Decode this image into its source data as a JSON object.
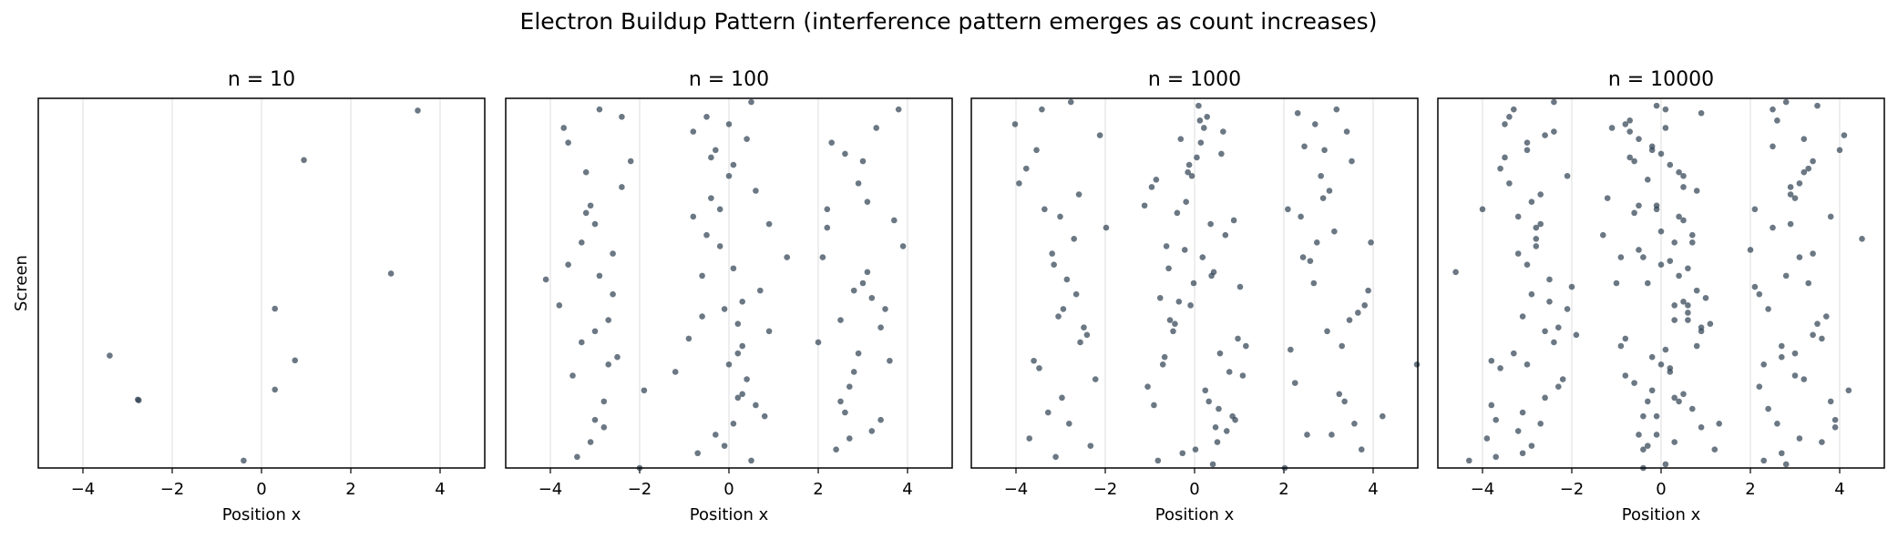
{
  "title": "Electron Buildup Pattern (interference pattern emerges as count increases)",
  "chart_data": [
    {
      "type": "scatter",
      "title": "n = 10",
      "xlabel": "Position x",
      "ylabel": "Screen",
      "color": "#2c3e50",
      "grid": true,
      "xlim": [
        -5,
        5
      ],
      "ylim": [
        0,
        1
      ],
      "xticks": [
        {
          "value": -4,
          "label": "−4"
        },
        {
          "value": -2,
          "label": "−2"
        },
        0,
        2,
        4
      ],
      "x": [
        3.5,
        0.95,
        2.9,
        0.3,
        -3.4,
        0.75,
        -2.75,
        -2.77,
        0.3,
        -0.4
      ],
      "y": [
        0.967,
        0.833,
        0.526,
        0.431,
        0.304,
        0.291,
        0.183,
        0.185,
        0.212,
        0.02
      ]
    },
    {
      "type": "scatter",
      "title": "n = 100",
      "xlabel": "Position x",
      "color": "#2c3e50",
      "grid": true,
      "xlim": [
        -5,
        5
      ],
      "ylim": [
        0,
        1
      ],
      "xticks": [
        {
          "value": -4,
          "label": "−4"
        },
        {
          "value": -2,
          "label": "−2"
        },
        0,
        2,
        4
      ],
      "x": [
        -3.6,
        -3.3,
        -2.9,
        -3.1,
        -2.6,
        -2.5,
        -3.0,
        -3.7,
        -3.2,
        -2.8,
        -3.4,
        -2.4,
        -3.0,
        -2.7,
        -4.1,
        -3.5,
        -2.9,
        -3.3,
        -2.2,
        -3.1,
        -2.6,
        -3.8,
        -2.0,
        -1.9,
        -3.2,
        -2.8,
        -3.0,
        -2.4,
        -3.6,
        -2.7,
        -0.5,
        0.1,
        -0.2,
        0.0,
        0.3,
        -0.8,
        0.6,
        -0.4,
        0.2,
        -0.1,
        0.9,
        -0.6,
        0.4,
        -0.3,
        0.1,
        0.7,
        -0.9,
        0.5,
        -0.2,
        0.3,
        1.3,
        -0.7,
        0.0,
        0.2,
        -0.5,
        0.8,
        -0.1,
        0.4,
        -1.2,
        0.6,
        -0.3,
        0.1,
        0.9,
        -0.4,
        0.2,
        -0.8,
        0.5,
        -0.6,
        0.0,
        0.3,
        2.2,
        3.1,
        2.8,
        3.6,
        2.5,
        3.0,
        3.9,
        2.3,
        3.4,
        2.7,
        3.2,
        2.1,
        2.9,
        3.5,
        2.6,
        3.3,
        2.0,
        3.7,
        2.4,
        3.0,
        2.8,
        3.1,
        2.5,
        3.8,
        2.2,
        3.4,
        2.9,
        2.6,
        3.2,
        2.7
      ],
      "y": [
        0.88,
        0.61,
        0.52,
        0.71,
        0.47,
        0.3,
        0.13,
        0.92,
        0.8,
        0.18,
        0.03,
        0.76,
        0.66,
        0.4,
        0.51,
        0.25,
        0.97,
        0.34,
        0.83,
        0.07,
        0.58,
        0.44,
        0.0,
        0.21,
        0.69,
        0.11,
        0.37,
        0.95,
        0.55,
        0.28,
        0.95,
        0.82,
        0.6,
        0.28,
        0.45,
        0.91,
        0.17,
        0.73,
        0.39,
        0.06,
        0.66,
        0.52,
        0.24,
        0.86,
        0.12,
        0.48,
        0.35,
        0.99,
        0.7,
        0.2,
        0.57,
        0.04,
        0.79,
        0.31,
        0.63,
        0.14,
        0.43,
        0.89,
        0.26,
        0.75,
        0.09,
        0.54,
        0.37,
        0.84,
        0.19,
        0.68,
        0.02,
        0.41,
        0.93,
        0.33,
        0.65,
        0.72,
        0.48,
        0.29,
        0.18,
        0.5,
        0.6,
        0.88,
        0.38,
        0.22,
        0.1,
        0.57,
        0.77,
        0.43,
        0.15,
        0.92,
        0.34,
        0.67,
        0.05,
        0.83,
        0.26,
        0.53,
        0.4,
        0.97,
        0.7,
        0.13,
        0.31,
        0.85,
        0.46,
        0.08
      ]
    },
    {
      "type": "scatter",
      "title": "n = 1000",
      "xlabel": "Position x",
      "color": "#2c3e50",
      "grid": true,
      "xlim": [
        -5,
        5
      ],
      "ylim": [
        0,
        1
      ],
      "xticks": [
        {
          "value": -4,
          "label": "−4"
        },
        {
          "value": -2,
          "label": "−2"
        },
        0,
        2,
        4
      ],
      "x": [
        -3.42,
        -2.81,
        -3.15,
        -2.56,
        -3.77,
        -2.33,
        -3.01,
        -2.94,
        -3.6,
        -2.12,
        -3.28,
        -2.7,
        -3.93,
        -2.48,
        -3.11,
        -2.86,
        -3.54,
        -2.22,
        -3.36,
        -2.65,
        -4.02,
        -2.97,
        -3.19,
        -2.41,
        -3.7,
        -2.59,
        -3.05,
        -2.77,
        -3.48,
        -1.98,
        -0.82,
        0.14,
        -0.35,
        0.57,
        -0.06,
        0.91,
        -0.63,
        0.28,
        -1.05,
        0.43,
        -0.19,
        0.72,
        -0.48,
        0.05,
        1.02,
        -0.91,
        0.36,
        -0.27,
        0.64,
        -0.71,
        0.18,
        -0.12,
        0.85,
        -0.55,
        0.09,
        1.15,
        -0.39,
        0.51,
        -0.02,
        -0.96,
        0.24,
        0.69,
        -0.31,
        0.41,
        -0.77,
        0.97,
        -0.15,
        0.32,
        -0.58,
        0.12,
        0.78,
        -1.12,
        0.47,
        -0.22,
        0.6,
        -0.44,
        0.02,
        0.88,
        -0.67,
        0.21,
        -0.09,
        0.54,
        -0.86,
        0.38,
        1.08,
        2.31,
        3.07,
        2.74,
        3.52,
        2.15,
        3.89,
        2.88,
        3.24,
        2.46,
        3.66,
        2.02,
        3.13,
        2.97,
        3.41,
        2.59,
        4.21,
        2.83,
        3.3,
        2.38,
        3.74,
        2.67,
        3.18,
        2.25,
        3.95,
        2.91,
        3.47,
        2.52,
        3.02,
        4.98,
        2.7,
        3.36,
        2.43,
        3.81,
        2.09,
        3.58
      ],
      "y": [
        0.97,
        0.12,
        0.55,
        0.34,
        0.81,
        0.06,
        0.68,
        0.43,
        0.29,
        0.9,
        0.15,
        0.62,
        0.77,
        0.38,
        0.03,
        0.51,
        0.86,
        0.24,
        0.7,
        0.47,
        0.93,
        0.19,
        0.58,
        0.36,
        0.08,
        0.74,
        0.41,
        0.99,
        0.27,
        0.65,
        0.02,
        0.88,
        0.45,
        0.31,
        0.79,
        0.13,
        0.6,
        0.95,
        0.22,
        0.53,
        0.72,
        0.1,
        0.37,
        0.84,
        0.49,
        0.17,
        0.66,
        0.04,
        0.91,
        0.28,
        0.57,
        0.82,
        0.14,
        0.4,
        0.98,
        0.33,
        0.69,
        0.07,
        0.5,
        0.76,
        0.21,
        0.63,
        0.89,
        0.01,
        0.46,
        0.35,
        0.8,
        0.18,
        0.54,
        0.94,
        0.26,
        0.71,
        0.11,
        0.59,
        0.85,
        0.39,
        0.05,
        0.67,
        0.3,
        0.92,
        0.44,
        0.16,
        0.78,
        0.52,
        0.25,
        0.96,
        0.09,
        0.61,
        0.83,
        0.32,
        0.48,
        0.73,
        0.2,
        0.87,
        0.42,
        0.0,
        0.64,
        0.37,
        0.91,
        0.56,
        0.14,
        0.79,
        0.33,
        0.68,
        0.05,
        0.5,
        0.97,
        0.23,
        0.61,
        0.86,
        0.4,
        0.09,
        0.75,
        0.28,
        0.93,
        0.18,
        0.57,
        0.44,
        0.7,
        0.12
      ]
    },
    {
      "type": "scatter",
      "title": "n = 10000",
      "xlabel": "Position x",
      "color": "#2c3e50",
      "grid": true,
      "xlim": [
        -5,
        5
      ],
      "ylim": [
        0,
        1
      ],
      "xticks": [
        {
          "value": -4,
          "label": "−4"
        },
        {
          "value": -2,
          "label": "−2"
        },
        0,
        2,
        4
      ],
      "x": [
        -3.3,
        -2.7,
        -3.0,
        -2.4,
        -3.6,
        -2.9,
        -3.2,
        -2.1,
        -3.8,
        -2.6,
        -3.1,
        -2.8,
        -3.4,
        -2.3,
        -3.7,
        -2.5,
        -3.0,
        -2.2,
        -4.0,
        -2.9,
        -3.5,
        -2.6,
        -3.2,
        -1.9,
        -3.9,
        -2.7,
        -3.1,
        -2.4,
        -3.6,
        -2.8,
        -4.3,
        -3.0,
        -2.5,
        -3.3,
        -2.1,
        -3.7,
        -2.8,
        -3.4,
        -2.3,
        -4.6,
        -2.9,
        -3.2,
        -2.6,
        -3.5,
        -2.0,
        -3.8,
        -2.7,
        -3.1,
        -2.4,
        -3.0,
        -0.9,
        0.2,
        -0.4,
        0.6,
        -0.1,
        0.8,
        -0.6,
        0.3,
        -1.0,
        0.5,
        -0.2,
        0.7,
        -0.5,
        0.1,
        1.0,
        -0.8,
        0.4,
        -0.3,
        0.6,
        -0.7,
        0.2,
        -0.1,
        0.9,
        -0.5,
        0.0,
        1.1,
        -0.4,
        0.5,
        -0.2,
        -1.1,
        0.3,
        0.7,
        -0.3,
        0.4,
        -0.8,
        0.9,
        -0.1,
        0.3,
        -0.6,
        0.1,
        0.8,
        -1.2,
        0.5,
        -0.2,
        0.6,
        -0.4,
        0.0,
        0.9,
        -0.7,
        0.2,
        -0.1,
        0.5,
        -0.9,
        0.4,
        1.2,
        -0.3,
        0.1,
        -0.6,
        0.7,
        -0.2,
        0.3,
        -0.5,
        0.8,
        0.0,
        -0.8,
        0.4,
        -0.4,
        0.6,
        -0.1,
        1.3,
        -1.3,
        0.2,
        -0.7,
        0.5,
        -0.3,
        0.1,
        0.9,
        -0.5,
        0.3,
        0.0,
        2.3,
        3.1,
        2.7,
        3.5,
        2.1,
        3.9,
        2.9,
        3.2,
        2.5,
        3.7,
        2.0,
        3.1,
        3.0,
        3.4,
        2.6,
        4.2,
        2.8,
        3.3,
        2.4,
        3.8,
        2.7,
        3.2,
        2.2,
        3.9,
        2.9,
        3.5,
        2.5,
        3.0,
        4.5,
        2.7,
        3.4,
        2.4,
        3.8,
        2.1,
        3.6,
        2.8,
        3.1,
        2.6,
        4.0,
        2.3,
        3.3,
        2.9,
        3.6,
        2.5,
        3.0,
        4.1,
        2.2,
        3.4,
        2.8,
        3.2
      ],
      "y": [
        0.97,
        0.12,
        0.55,
        0.34,
        0.81,
        0.06,
        0.68,
        0.43,
        0.29,
        0.9,
        0.15,
        0.62,
        0.77,
        0.38,
        0.03,
        0.51,
        0.86,
        0.24,
        0.7,
        0.47,
        0.93,
        0.19,
        0.58,
        0.36,
        0.08,
        0.74,
        0.41,
        0.99,
        0.27,
        0.65,
        0.02,
        0.88,
        0.45,
        0.31,
        0.79,
        0.13,
        0.6,
        0.95,
        0.22,
        0.53,
        0.72,
        0.1,
        0.37,
        0.84,
        0.49,
        0.17,
        0.66,
        0.04,
        0.91,
        0.28,
        0.57,
        0.82,
        0.14,
        0.4,
        0.98,
        0.33,
        0.69,
        0.07,
        0.5,
        0.76,
        0.21,
        0.63,
        0.89,
        0.01,
        0.46,
        0.35,
        0.8,
        0.18,
        0.54,
        0.94,
        0.26,
        0.71,
        0.11,
        0.59,
        0.85,
        0.39,
        0.05,
        0.67,
        0.3,
        0.92,
        0.44,
        0.16,
        0.78,
        0.52,
        0.25,
        0.96,
        0.09,
        0.61,
        0.83,
        0.32,
        0.48,
        0.73,
        0.2,
        0.87,
        0.42,
        0.0,
        0.64,
        0.37,
        0.91,
        0.56,
        0.14,
        0.79,
        0.33,
        0.68,
        0.05,
        0.5,
        0.97,
        0.23,
        0.61,
        0.86,
        0.4,
        0.09,
        0.75,
        0.28,
        0.93,
        0.18,
        0.57,
        0.44,
        0.7,
        0.12,
        0.63,
        0.27,
        0.84,
        0.45,
        0.06,
        0.92,
        0.38,
        0.71,
        0.19,
        0.55,
        0.02,
        0.77,
        0.33,
        0.98,
        0.49,
        0.13,
        0.66,
        0.24,
        0.87,
        0.41,
        0.59,
        0.08,
        0.73,
        0.36,
        0.94,
        0.21,
        0.52,
        0.81,
        0.16,
        0.68,
        0.3,
        0.89,
        0.47,
        0.11,
        0.76,
        0.39,
        0.97,
        0.25,
        0.62,
        0.04,
        0.83,
        0.43,
        0.18,
        0.7,
        0.35,
        0.99,
        0.57,
        0.12,
        0.86,
        0.28,
        0.5,
        0.74,
        0.07,
        0.65,
        0.31,
        0.9,
        0.22,
        0.58,
        0.01,
        0.8
      ]
    }
  ]
}
